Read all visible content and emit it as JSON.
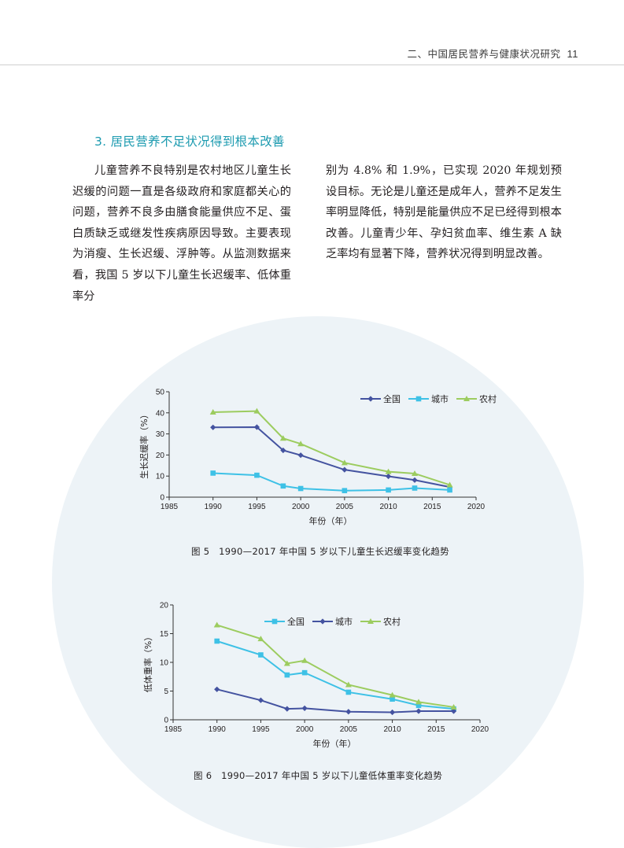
{
  "header": {
    "running_title": "二、中国居民营养与健康状况研究",
    "page_number": "11"
  },
  "section": {
    "title": "3. 居民营养不足状况得到根本改善"
  },
  "body": {
    "left_column": "儿童营养不良特别是农村地区儿童生长迟缓的问题一直是各级政府和家庭都关心的问题，营养不良多由膳食能量供应不足、蛋白质缺乏或继发性疾病原因导致。主要表现为消瘦、生长迟缓、浮肿等。从监测数据来看，我国 5 岁以下儿童生长迟缓率、低体重率分",
    "right_column": "别为 4.8% 和 1.9%，已实现 2020 年规划预设目标。无论是儿童还是成年人，营养不足发生率明显降低，特别是能量供应不足已经得到根本改善。儿童青少年、孕妇贫血率、维生素 A 缺乏率均有显著下降，营养状况得到明显改善。"
  },
  "figures": [
    {
      "caption": "图 5　1990—2017 年中国 5 岁以下儿童生长迟缓率变化趋势"
    },
    {
      "caption": "图 6　1990—2017 年中国 5 岁以下儿童低体重率变化趋势"
    }
  ],
  "chart_data": [
    {
      "type": "line",
      "title": "",
      "xlabel": "年份（年）",
      "ylabel": "生长迟缓率（%）",
      "xlim": [
        1985,
        2020
      ],
      "ylim": [
        0,
        50
      ],
      "xticks": [
        1985,
        1990,
        1995,
        2000,
        2005,
        2010,
        2015,
        2020
      ],
      "yticks": [
        0,
        10,
        20,
        30,
        40,
        50
      ],
      "legend_position": "top-right",
      "series": [
        {
          "name": "全国",
          "color": "#4453a0",
          "marker": "diamond",
          "x": [
            1990,
            1995,
            1998,
            2000,
            2005,
            2010,
            2013,
            2017
          ],
          "values": [
            33.1,
            33.2,
            22.2,
            19.9,
            13.0,
            9.9,
            8.1,
            4.8
          ]
        },
        {
          "name": "城市",
          "color": "#3ec1e6",
          "marker": "square",
          "x": [
            1990,
            1995,
            1998,
            2000,
            2005,
            2010,
            2013,
            2017
          ],
          "values": [
            11.4,
            10.4,
            5.3,
            4.1,
            3.1,
            3.4,
            4.3,
            3.4
          ]
        },
        {
          "name": "农村",
          "color": "#9ccc5f",
          "marker": "triangle",
          "x": [
            1990,
            1995,
            1998,
            2000,
            2005,
            2010,
            2013,
            2017
          ],
          "values": [
            40.3,
            40.8,
            27.9,
            25.3,
            16.3,
            12.1,
            11.2,
            5.8
          ]
        }
      ]
    },
    {
      "type": "line",
      "title": "",
      "xlabel": "年份（年）",
      "ylabel": "低体重率（%）",
      "xlim": [
        1985,
        2020
      ],
      "ylim": [
        0,
        20
      ],
      "xticks": [
        1985,
        1990,
        1995,
        2000,
        2005,
        2010,
        2015,
        2020
      ],
      "yticks": [
        0,
        5,
        10,
        15,
        20
      ],
      "legend_position": "top-right",
      "series": [
        {
          "name": "全国",
          "color": "#3ec1e6",
          "marker": "square",
          "x": [
            1990,
            1995,
            1998,
            2000,
            2005,
            2010,
            2013,
            2017
          ],
          "values": [
            13.7,
            11.3,
            7.8,
            8.2,
            4.8,
            3.6,
            2.5,
            1.9
          ]
        },
        {
          "name": "城市",
          "color": "#4453a0",
          "marker": "diamond",
          "x": [
            1990,
            1995,
            1998,
            2000,
            2005,
            2010,
            2013,
            2017
          ],
          "values": [
            5.3,
            3.4,
            1.9,
            2.0,
            1.4,
            1.3,
            1.5,
            1.5
          ]
        },
        {
          "name": "农村",
          "color": "#9ccc5f",
          "marker": "triangle",
          "x": [
            1990,
            1995,
            1998,
            2000,
            2005,
            2010,
            2013,
            2017
          ],
          "values": [
            16.5,
            14.1,
            9.8,
            10.3,
            6.1,
            4.3,
            3.1,
            2.2
          ]
        }
      ]
    }
  ]
}
